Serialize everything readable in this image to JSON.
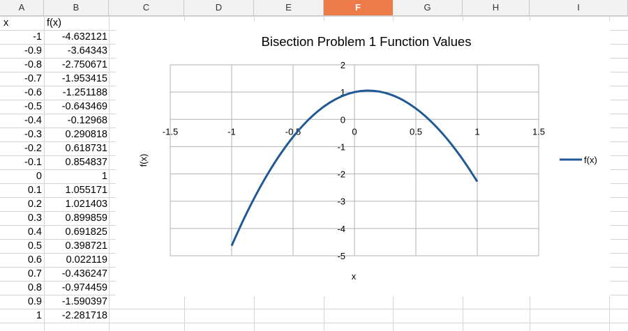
{
  "columns": [
    "A",
    "B",
    "C",
    "D",
    "E",
    "F",
    "G",
    "H",
    "I"
  ],
  "selected_column": "F",
  "header_row": {
    "x": "x",
    "fx": "f(x)"
  },
  "rows": [
    {
      "x": "-1",
      "fx": "-4.632121"
    },
    {
      "x": "-0.9",
      "fx": "-3.64343"
    },
    {
      "x": "-0.8",
      "fx": "-2.750671"
    },
    {
      "x": "-0.7",
      "fx": "-1.953415"
    },
    {
      "x": "-0.6",
      "fx": "-1.251188"
    },
    {
      "x": "-0.5",
      "fx": "-0.643469"
    },
    {
      "x": "-0.4",
      "fx": "-0.12968"
    },
    {
      "x": "-0.3",
      "fx": "0.290818"
    },
    {
      "x": "-0.2",
      "fx": "0.618731"
    },
    {
      "x": "-0.1",
      "fx": "0.854837"
    },
    {
      "x": "0",
      "fx": "1"
    },
    {
      "x": "0.1",
      "fx": "1.055171"
    },
    {
      "x": "0.2",
      "fx": "1.021403"
    },
    {
      "x": "0.3",
      "fx": "0.899859"
    },
    {
      "x": "0.4",
      "fx": "0.691825"
    },
    {
      "x": "0.5",
      "fx": "0.398721"
    },
    {
      "x": "0.6",
      "fx": "0.022119"
    },
    {
      "x": "0.7",
      "fx": "-0.436247"
    },
    {
      "x": "0.8",
      "fx": "-0.974459"
    },
    {
      "x": "0.9",
      "fx": "-1.590397"
    },
    {
      "x": "1",
      "fx": "-2.281718"
    }
  ],
  "chart_data": {
    "type": "scatter",
    "title": "Bisection Problem 1 Function Values",
    "xlabel": "x",
    "ylabel": "f(x)",
    "xlim": [
      -1.5,
      1.5
    ],
    "ylim": [
      -5,
      2
    ],
    "xticks": [
      "-1.5",
      "-1",
      "-0.5",
      "0",
      "0.5",
      "1",
      "1.5"
    ],
    "yticks": [
      "2",
      "1",
      "0",
      "-1",
      "-2",
      "-3",
      "-4",
      "-5"
    ],
    "grid": true,
    "legend_position": "right",
    "series": [
      {
        "name": "f(x)",
        "color": "#1f5a96",
        "smooth": true,
        "x": [
          -1,
          -0.9,
          -0.8,
          -0.7,
          -0.6,
          -0.5,
          -0.4,
          -0.3,
          -0.2,
          -0.1,
          0,
          0.1,
          0.2,
          0.3,
          0.4,
          0.5,
          0.6,
          0.7,
          0.8,
          0.9,
          1
        ],
        "y": [
          -4.632121,
          -3.64343,
          -2.750671,
          -1.953415,
          -1.251188,
          -0.643469,
          -0.12968,
          0.290818,
          0.618731,
          0.854837,
          1,
          1.055171,
          1.021403,
          0.899859,
          0.691825,
          0.398721,
          0.022119,
          -0.436247,
          -0.974459,
          -1.590397,
          -2.281718
        ]
      }
    ]
  }
}
